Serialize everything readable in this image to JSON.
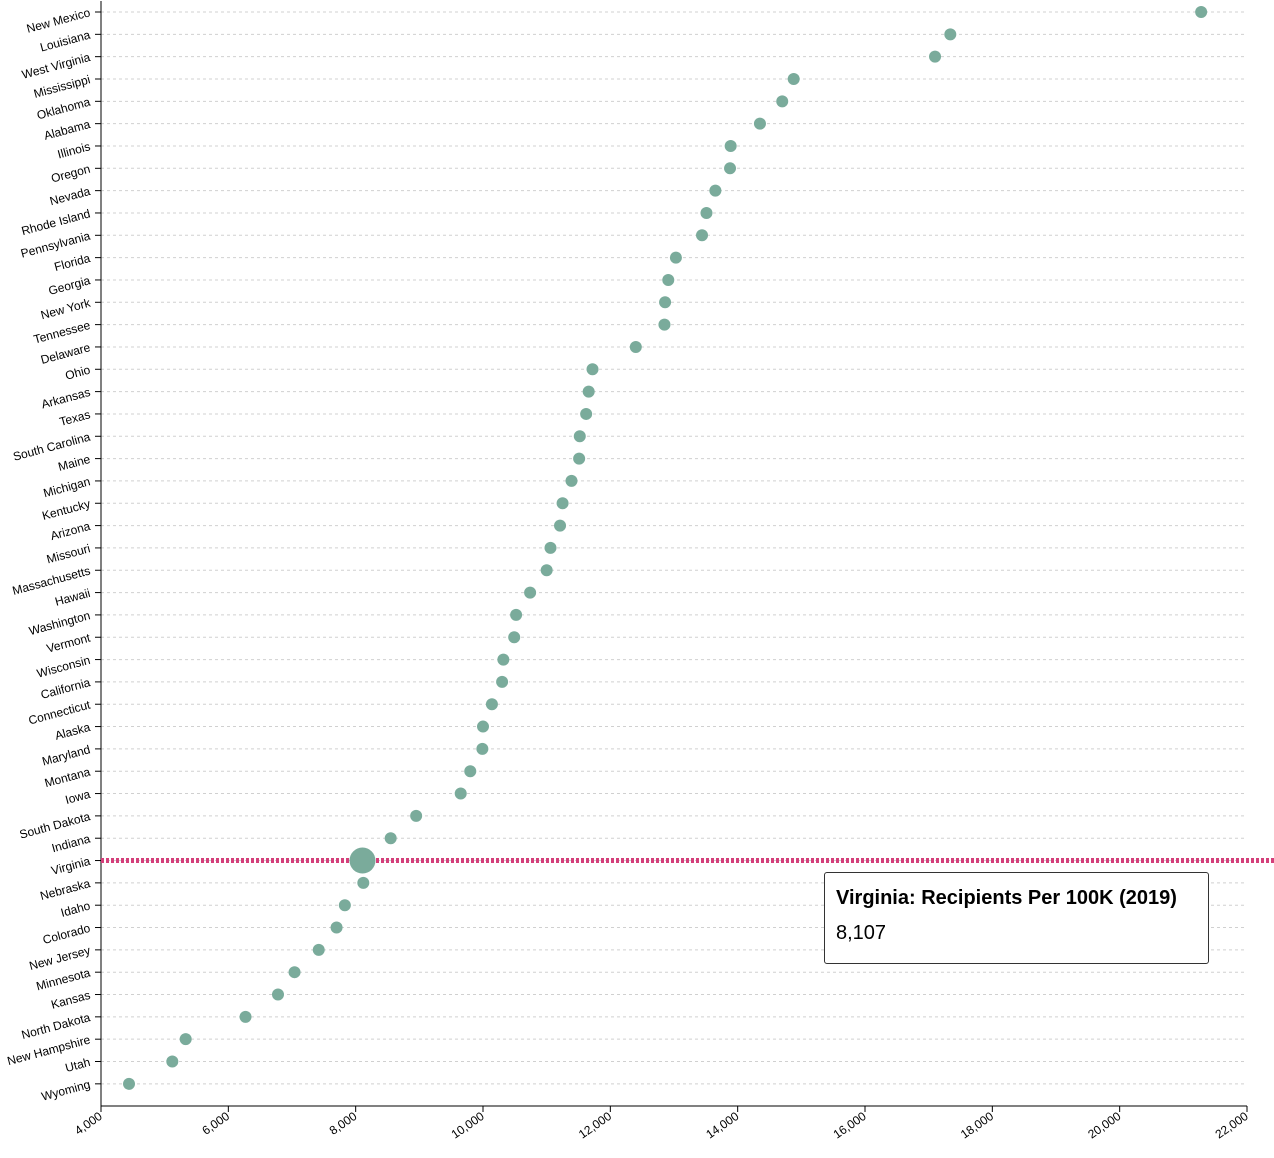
{
  "colors": {
    "dot": "#7aab9b",
    "highlight_line": "#d43f7a",
    "grid": "#d0d0d0"
  },
  "tooltip": {
    "title": "Virginia: Recipients Per 100K (2019)",
    "value": "8,107"
  },
  "chart_data": {
    "type": "scatter",
    "orientation": "horizontal-dot-plot",
    "xlim": [
      4000,
      22000
    ],
    "x_ticks": [
      4000,
      6000,
      8000,
      10000,
      12000,
      14000,
      16000,
      18000,
      20000,
      22000
    ],
    "x_tick_labels": [
      "4,000",
      "6,000",
      "8,000",
      "10,000",
      "12,000",
      "14,000",
      "16,000",
      "18,000",
      "20,000",
      "22,000"
    ],
    "grid": true,
    "highlight": "Virginia",
    "categories": [
      "New Mexico",
      "Louisiana",
      "West Virginia",
      "Mississippi",
      "Oklahoma",
      "Alabama",
      "Illinois",
      "Oregon",
      "Nevada",
      "Rhode Island",
      "Pennsylvania",
      "Florida",
      "Georgia",
      "New York",
      "Tennessee",
      "Delaware",
      "Ohio",
      "Arkansas",
      "Texas",
      "South Carolina",
      "Maine",
      "Michigan",
      "Kentucky",
      "Arizona",
      "Missouri",
      "Massachusetts",
      "Hawaii",
      "Washington",
      "Vermont",
      "Wisconsin",
      "California",
      "Connecticut",
      "Alaska",
      "Maryland",
      "Montana",
      "Iowa",
      "South Dakota",
      "Indiana",
      "Virginia",
      "Nebraska",
      "Idaho",
      "Colorado",
      "New Jersey",
      "Minnesota",
      "Kansas",
      "North Dakota",
      "New Hampshire",
      "Utah",
      "Wyoming"
    ],
    "values": [
      21280,
      17340,
      17100,
      14880,
      14700,
      14350,
      13890,
      13880,
      13650,
      13510,
      13440,
      13030,
      12910,
      12860,
      12850,
      12400,
      11720,
      11660,
      11620,
      11520,
      11510,
      11390,
      11250,
      11210,
      11060,
      11000,
      10740,
      10520,
      10490,
      10320,
      10300,
      10140,
      10000,
      9990,
      9800,
      9650,
      8950,
      8550,
      8107,
      8120,
      7830,
      7700,
      7420,
      7040,
      6780,
      6270,
      5330,
      5120,
      4440
    ]
  }
}
